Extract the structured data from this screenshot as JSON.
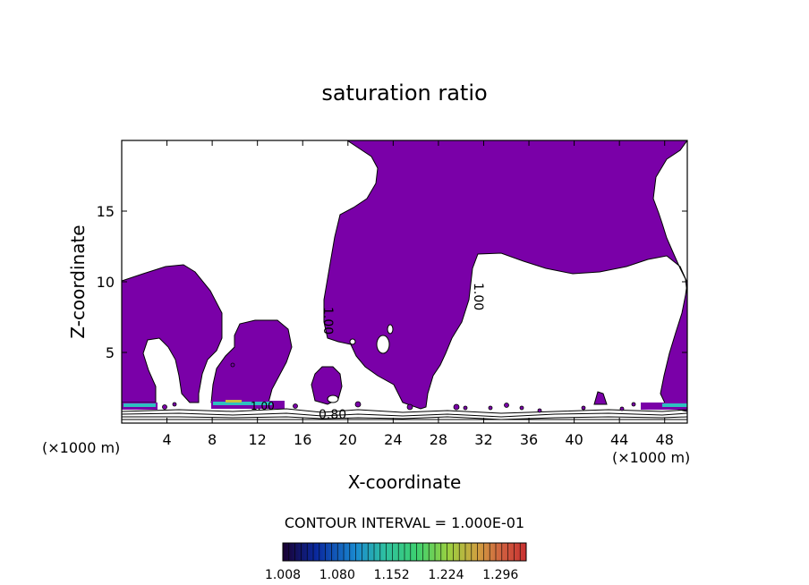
{
  "chart_data": {
    "type": "heatmap",
    "title": "saturation ratio",
    "xlabel": "X-coordinate",
    "ylabel": "Z-coordinate",
    "x_unit": "(×1000 m)",
    "x_unit_right": "(×1000 m)",
    "xlim": [
      0,
      50
    ],
    "ylim": [
      0,
      20
    ],
    "x_ticks": [
      4,
      8,
      12,
      16,
      20,
      24,
      28,
      32,
      36,
      40,
      44,
      48
    ],
    "x_tick_labels": [
      "4",
      "8",
      "12",
      "16",
      "20",
      "24",
      "28",
      "32",
      "36",
      "40",
      "44",
      "48"
    ],
    "y_ticks": [
      5,
      10,
      15
    ],
    "y_tick_labels": [
      "5",
      "10",
      "15"
    ],
    "contour_interval_text": "CONTOUR INTERVAL = 1.000E-01",
    "contour_labels": [
      {
        "text": "1.00",
        "x": 18.5,
        "z": 8.3
      },
      {
        "text": "1.00",
        "x": 31.0,
        "z": 8.8
      },
      {
        "text": "1.00",
        "x": 13.0,
        "z": 1.2
      },
      {
        "text": "0.80",
        "x": 18.9,
        "z": 0.6
      }
    ],
    "colorbar": {
      "min": 1.008,
      "max": 1.33,
      "tick_labels": [
        "1.008",
        "1.080",
        "1.152",
        "1.224",
        "1.296"
      ],
      "colors": [
        "#1a0030",
        "#0a2aa0",
        "#1a8ad0",
        "#2ec0a0",
        "#3cd070",
        "#9ad040",
        "#d0a040",
        "#d06040",
        "#c83030"
      ]
    },
    "fill_color": "#7a00a8",
    "note_fill": "saturation ratio > 1.00 region shaded purple"
  }
}
